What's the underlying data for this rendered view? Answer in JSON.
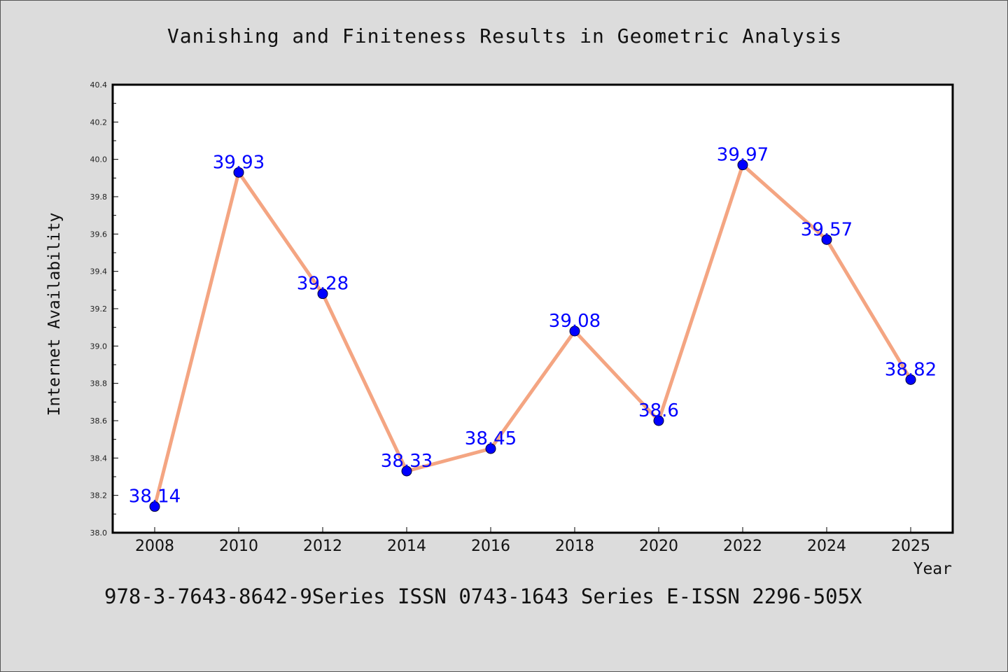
{
  "chart_data": {
    "type": "line",
    "title": "Vanishing and Finiteness Results in Geometric Analysis",
    "xlabel": "Year",
    "ylabel": "Internet Availability",
    "x": [
      "2008",
      "2010",
      "2012",
      "2014",
      "2016",
      "2018",
      "2020",
      "2022",
      "2024",
      "2025"
    ],
    "values": [
      38.14,
      39.93,
      39.28,
      38.33,
      38.45,
      39.08,
      38.6,
      39.97,
      39.57,
      38.82
    ],
    "data_labels": [
      "38.14",
      "39.93",
      "39.28",
      "38.33",
      "38.45",
      "39.08",
      "38.6",
      "39.97",
      "39.57",
      "38.82"
    ],
    "ylim": [
      38.0,
      40.4
    ],
    "yticks": [
      "38.0",
      "38.2",
      "38.4",
      "38.6",
      "38.8",
      "39.0",
      "39.2",
      "39.4",
      "39.6",
      "39.8",
      "40.0",
      "40.2",
      "40.4"
    ],
    "grid": false,
    "line_color": "#f4a582",
    "marker_color": "#0000ff",
    "label_color": "#0000ff"
  },
  "caption": "978-3-7643-8642-9Series ISSN 0743-1643 Series E-ISSN 2296-505X"
}
